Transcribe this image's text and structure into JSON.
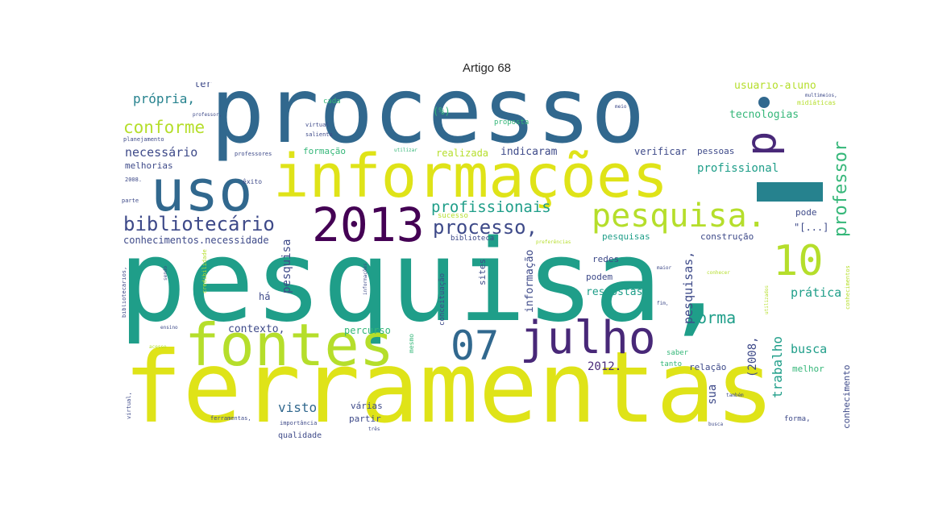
{
  "title": "Artigo 68",
  "palette": {
    "purple": "#440154",
    "indigo": "#482878",
    "blue": "#3e4a89",
    "steel": "#31688e",
    "teal": "#26828e",
    "green_teal": "#1f9e89",
    "green": "#35b779",
    "lime": "#6ece58",
    "yellow_green": "#b5de2b",
    "yellow": "#fde725"
  },
  "words": {
    "processo": "processo",
    "pesquisa_comma": "pesquisa,",
    "ferramentas": "ferramentas",
    "informacoes": "informações",
    "uso": "uso",
    "fontes": "fontes",
    "julho": "julho",
    "n2013": "2013",
    "n07": "07",
    "n10": "10",
    "pesquisa_period": "pesquisa.",
    "p": "p",
    "bibliotecario": "bibliotecário",
    "processo_comma": "processo,",
    "profissionais": "profissionais",
    "professor": "professor",
    "conforme": "conforme",
    "propria": "própria,",
    "necessario": "necessário",
    "melhorias": "melhorias",
    "conhecimentos_necessidade": "conhecimentos.necessidade",
    "indicaram": "indicaram",
    "realizada": "realizada",
    "formacao": "formação",
    "verificar": "verificar",
    "pessoas": "pessoas",
    "profissional": "profissional",
    "tecnologias": "tecnologias",
    "usuario_aluno": "usuário-aluno",
    "midiaticas": "midiáticas",
    "pode": "pode",
    "bracket": "\"[...]",
    "pesquisas_lower": "pesquisas",
    "construcao": "construção",
    "ter": "ter",
    "cada": "cada",
    "percent": "(%)",
    "proposta": "proposta",
    "sucesso": "sucesso",
    "biblioteca": "biblioteca",
    "redes": "redes",
    "respostas": "respostas",
    "podem": "podem",
    "ha": "há",
    "contexto": "contexto,",
    "percurso": "percurso",
    "forma": "forma",
    "pratica": "prática",
    "trabalho": "trabalho",
    "busca": "busca",
    "melhor": "melhor",
    "relacao": "relação",
    "tanto": "tanto",
    "saber": "saber",
    "n2012": "2012.",
    "n2008": "(2008,",
    "visto": "visto",
    "varias": "várias",
    "partir": "partir",
    "qualidade": "qualidade",
    "importancia": "importância",
    "ferramentas_comma": "ferramentas,",
    "forma_comma": "forma,",
    "conhecimento": "conhecimento",
    "sua": "sua",
    "pesquisa_vertical": "pesquisa",
    "pesquisas_comma": "pesquisas,",
    "informacao": "informação",
    "sites": "sites",
    "conceituacao": "conceituação",
    "mesmo": "mesmo",
    "exito": "êxito",
    "parte": "parte",
    "professor_small": "professor,",
    "planejamento": "planejamento",
    "virtual": "virtual",
    "salienta": "salienta",
    "professores": "professores",
    "utilizar": "utilizar",
    "multimeios": "multimeios,",
    "meio": "meio",
    "n2008_small": "2008.",
    "bibliotecarios": "bibliotecários,",
    "sendo": "sendo",
    "credibilidade": "credibilidade",
    "informacoes_small": "informações",
    "preferencias": "preferências",
    "maior": "maior",
    "conhecer": "conhecer",
    "fim": "fim,",
    "utilizados": "utilizados",
    "conhecimentos_v": "conhecimentos",
    "tambem": "também",
    "tres": "três",
    "virtual_v": "virtual,",
    "ensino": "ensino",
    "acesso": "acesso",
    "busca_small": "busca"
  }
}
